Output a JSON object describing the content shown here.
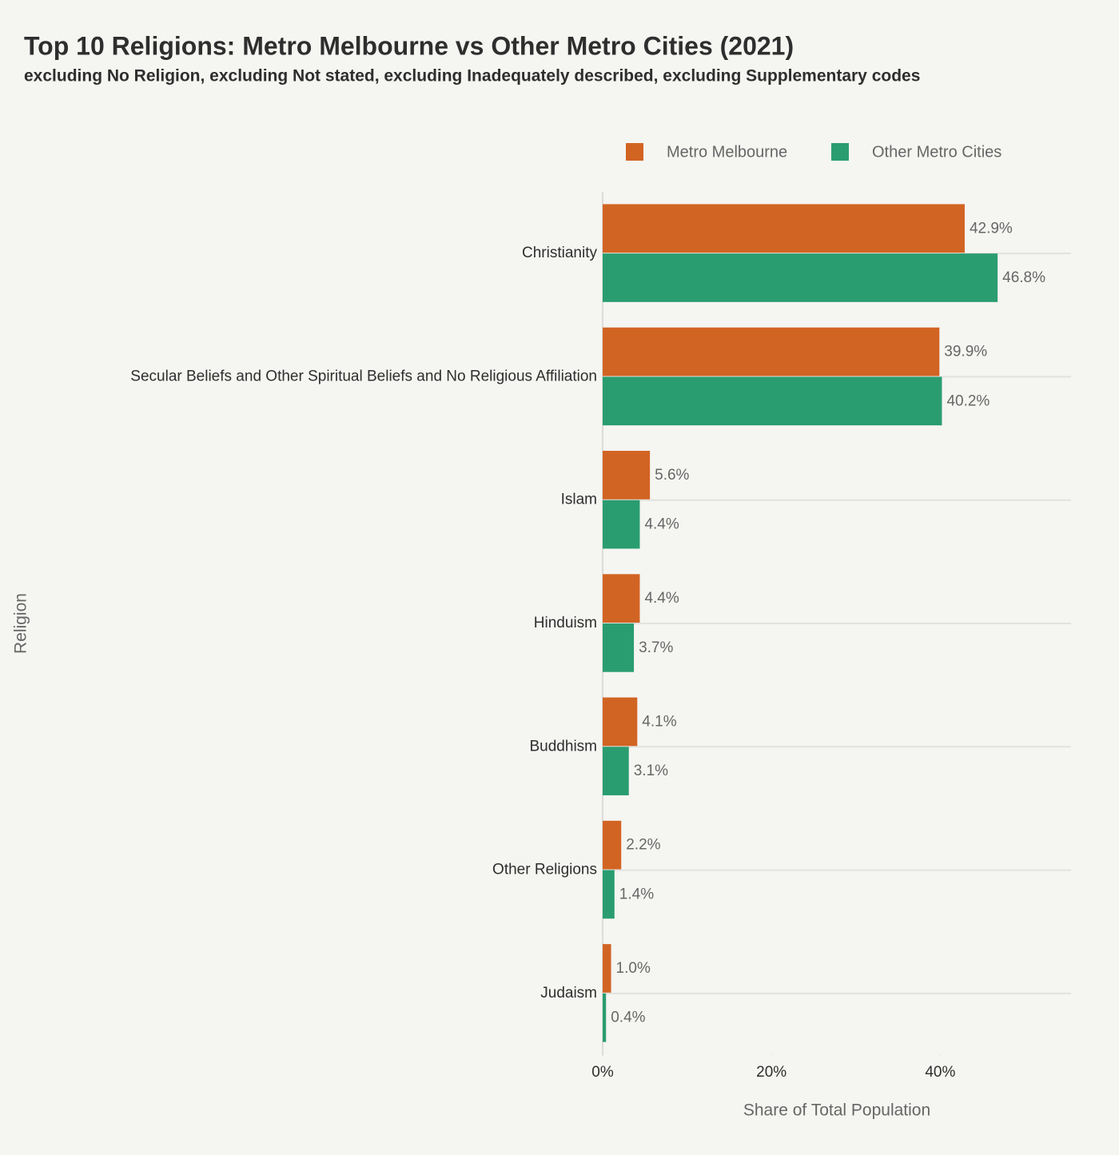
{
  "chart_data": {
    "type": "bar",
    "orientation": "horizontal",
    "title": "Top 10 Religions: Metro Melbourne vs Other Metro Cities (2021)",
    "subtitle": "excluding No Religion, excluding Not stated, excluding Inadequately described, excluding Supplementary codes",
    "x_label": "Share of Total Population",
    "y_label": "Religion",
    "categories": [
      "Christianity",
      "Secular Beliefs and Other Spiritual Beliefs and No Religious Affiliation",
      "Islam",
      "Hinduism",
      "Buddhism",
      "Other Religions",
      "Judaism"
    ],
    "series": [
      {
        "name": "Metro Melbourne",
        "color": "#d26423",
        "values": [
          42.9,
          39.9,
          5.6,
          4.4,
          4.1,
          2.2,
          1.0
        ],
        "value_labels": [
          "42.9%",
          "39.9%",
          "5.6%",
          "4.4%",
          "4.1%",
          "2.2%",
          "1.0%"
        ]
      },
      {
        "name": "Other Metro Cities",
        "color": "#2a9d70",
        "values": [
          46.8,
          40.2,
          4.4,
          3.7,
          3.1,
          1.4,
          0.4
        ],
        "value_labels": [
          "46.8%",
          "40.2%",
          "4.4%",
          "3.7%",
          "3.1%",
          "1.4%",
          "0.4%"
        ]
      }
    ],
    "xlim": [
      0,
      55.5
    ],
    "xticks": [
      {
        "value": 0,
        "label": "0%"
      },
      {
        "value": 20,
        "label": "20%"
      },
      {
        "value": 40,
        "label": "40%"
      }
    ],
    "legend_position": "top-right"
  }
}
